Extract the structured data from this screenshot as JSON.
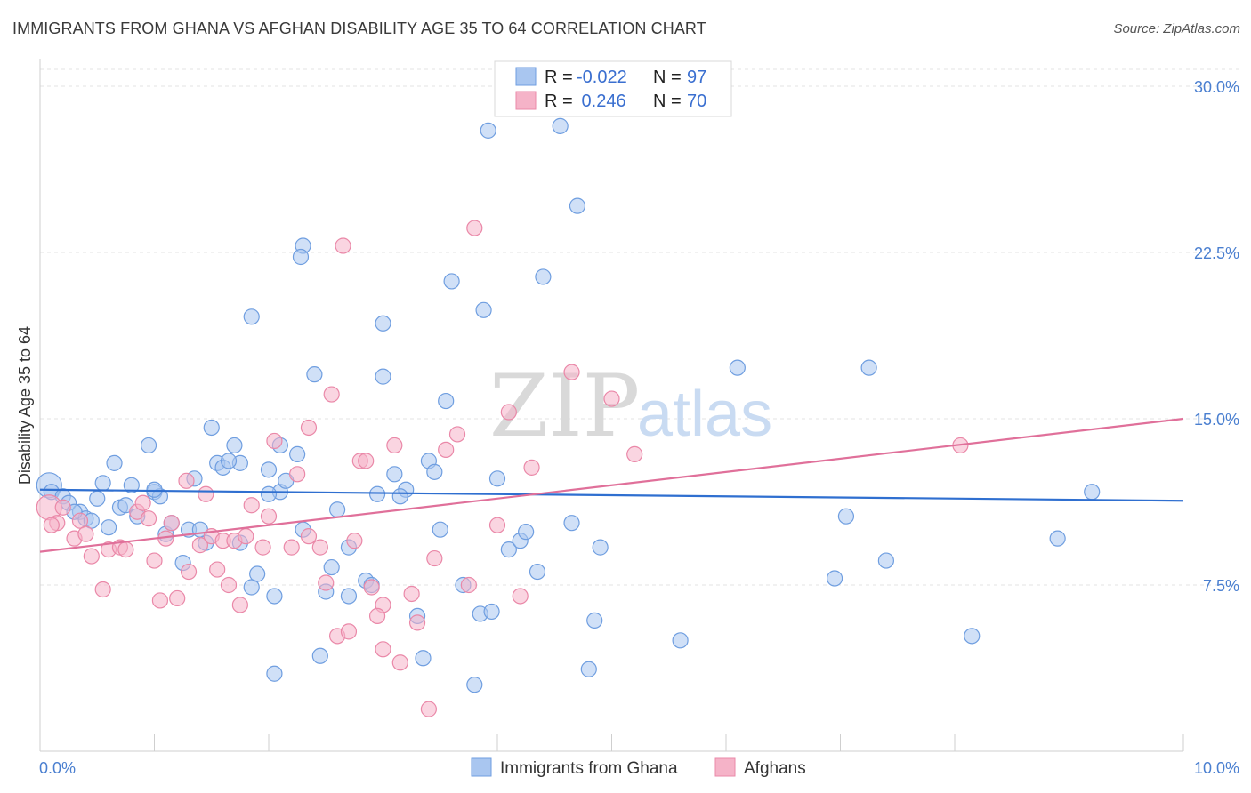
{
  "header": {
    "title": "IMMIGRANTS FROM GHANA VS AFGHAN DISABILITY AGE 35 TO 64 CORRELATION CHART",
    "source": "Source: ZipAtlas.com"
  },
  "watermark": {
    "zip": "ZIP",
    "atlas": "atlas"
  },
  "legend_top": {
    "rows": [
      {
        "r_label": "R = ",
        "r_value": "-0.022",
        "n_label": "N = ",
        "n_value": "97",
        "color": "#a9c6f0"
      },
      {
        "r_label": "R = ",
        "r_value": " 0.246",
        "n_label": "N = ",
        "n_value": "70",
        "color": "#f5b3c8"
      }
    ]
  },
  "legend_bottom": {
    "items": [
      {
        "label": "Immigrants from Ghana",
        "color": "#a9c6f0"
      },
      {
        "label": "Afghans",
        "color": "#f5b3c8"
      }
    ]
  },
  "chart_data": {
    "type": "scatter",
    "title": "IMMIGRANTS FROM GHANA VS AFGHAN DISABILITY AGE 35 TO 64 CORRELATION CHART",
    "xlabel": "",
    "ylabel": "Disability Age 35 to 64",
    "xlim": [
      0,
      10
    ],
    "ylim": [
      0,
      30
    ],
    "x_tick_labels": [
      "0.0%",
      "10.0%"
    ],
    "y_ticks": [
      7.5,
      15.0,
      22.5,
      30.0
    ],
    "y_tick_labels": [
      "7.5%",
      "15.0%",
      "22.5%",
      "30.0%"
    ],
    "grid": true,
    "colors": {
      "blue": "#6f9ee0",
      "blue_fill": "#a9c6f0",
      "blue_line": "#2f6fd0",
      "pink": "#ea88a8",
      "pink_fill": "#f5b3c8",
      "pink_line": "#e0709a",
      "axis_text": "#4a7fd0"
    },
    "series": [
      {
        "name": "Immigrants from Ghana",
        "color": "#a9c6f0",
        "trend": {
          "x": [
            0,
            10
          ],
          "y": [
            11.8,
            11.3
          ]
        },
        "points": [
          [
            0.08,
            12.0
          ],
          [
            0.1,
            11.7
          ],
          [
            0.2,
            11.5
          ],
          [
            0.25,
            11.2
          ],
          [
            0.35,
            10.8
          ],
          [
            0.4,
            10.5
          ],
          [
            0.5,
            11.4
          ],
          [
            0.55,
            12.1
          ],
          [
            0.65,
            13.0
          ],
          [
            0.7,
            11.0
          ],
          [
            0.8,
            12.0
          ],
          [
            0.85,
            10.6
          ],
          [
            0.95,
            13.8
          ],
          [
            1.0,
            11.7
          ],
          [
            1.05,
            11.5
          ],
          [
            1.1,
            9.8
          ],
          [
            1.15,
            10.3
          ],
          [
            1.25,
            8.5
          ],
          [
            1.3,
            10.0
          ],
          [
            1.35,
            12.3
          ],
          [
            1.45,
            9.4
          ],
          [
            1.5,
            14.6
          ],
          [
            1.55,
            13.0
          ],
          [
            1.6,
            12.8
          ],
          [
            1.7,
            13.8
          ],
          [
            1.75,
            13.0
          ],
          [
            1.75,
            9.4
          ],
          [
            1.85,
            7.4
          ],
          [
            1.9,
            8.0
          ],
          [
            1.85,
            19.6
          ],
          [
            2.0,
            12.7
          ],
          [
            2.1,
            11.7
          ],
          [
            2.05,
            7.0
          ],
          [
            2.05,
            3.5
          ],
          [
            2.1,
            13.8
          ],
          [
            2.15,
            12.2
          ],
          [
            2.3,
            22.8
          ],
          [
            2.28,
            22.3
          ],
          [
            2.25,
            13.4
          ],
          [
            2.3,
            10.0
          ],
          [
            2.4,
            17.0
          ],
          [
            2.45,
            4.3
          ],
          [
            2.5,
            7.2
          ],
          [
            2.55,
            8.3
          ],
          [
            2.6,
            10.9
          ],
          [
            2.7,
            9.2
          ],
          [
            2.85,
            7.7
          ],
          [
            2.9,
            7.5
          ],
          [
            2.95,
            11.6
          ],
          [
            3.0,
            19.3
          ],
          [
            3.0,
            16.9
          ],
          [
            3.1,
            12.5
          ],
          [
            3.2,
            11.8
          ],
          [
            3.3,
            6.1
          ],
          [
            3.35,
            4.2
          ],
          [
            3.4,
            13.1
          ],
          [
            3.45,
            12.6
          ],
          [
            3.5,
            10.0
          ],
          [
            3.55,
            15.8
          ],
          [
            3.6,
            21.2
          ],
          [
            3.7,
            7.5
          ],
          [
            3.8,
            3.0
          ],
          [
            3.85,
            6.2
          ],
          [
            3.88,
            19.9
          ],
          [
            3.92,
            28.0
          ],
          [
            3.95,
            6.3
          ],
          [
            4.0,
            12.3
          ],
          [
            4.1,
            9.1
          ],
          [
            4.2,
            9.5
          ],
          [
            4.25,
            9.9
          ],
          [
            4.35,
            8.1
          ],
          [
            4.4,
            21.4
          ],
          [
            4.55,
            28.2
          ],
          [
            4.65,
            10.3
          ],
          [
            4.7,
            24.6
          ],
          [
            4.8,
            3.7
          ],
          [
            4.85,
            5.9
          ],
          [
            4.9,
            9.2
          ],
          [
            5.6,
            5.0
          ],
          [
            6.1,
            17.3
          ],
          [
            6.95,
            7.8
          ],
          [
            7.05,
            10.6
          ],
          [
            7.25,
            17.3
          ],
          [
            7.4,
            8.6
          ],
          [
            8.15,
            5.2
          ],
          [
            8.9,
            9.6
          ],
          [
            9.2,
            11.7
          ],
          [
            0.3,
            10.8
          ],
          [
            0.6,
            10.1
          ],
          [
            1.0,
            11.8
          ],
          [
            1.4,
            10.0
          ],
          [
            0.45,
            10.4
          ],
          [
            0.75,
            11.1
          ],
          [
            1.65,
            13.1
          ],
          [
            2.7,
            7.0
          ],
          [
            3.15,
            11.5
          ],
          [
            2.0,
            11.6
          ]
        ]
      },
      {
        "name": "Afghans",
        "color": "#f5b3c8",
        "trend": {
          "x": [
            0,
            10
          ],
          "y": [
            9.0,
            15.0
          ]
        },
        "points": [
          [
            0.08,
            11.0
          ],
          [
            0.15,
            10.3
          ],
          [
            0.2,
            11.0
          ],
          [
            0.3,
            9.6
          ],
          [
            0.35,
            10.4
          ],
          [
            0.45,
            8.8
          ],
          [
            0.55,
            7.3
          ],
          [
            0.6,
            9.1
          ],
          [
            0.7,
            9.2
          ],
          [
            0.75,
            9.1
          ],
          [
            0.85,
            10.8
          ],
          [
            0.9,
            11.2
          ],
          [
            0.95,
            10.5
          ],
          [
            1.0,
            8.6
          ],
          [
            1.05,
            6.8
          ],
          [
            1.1,
            9.6
          ],
          [
            1.15,
            10.3
          ],
          [
            1.2,
            6.9
          ],
          [
            1.28,
            12.2
          ],
          [
            1.3,
            8.1
          ],
          [
            1.4,
            9.3
          ],
          [
            1.45,
            11.6
          ],
          [
            1.5,
            9.7
          ],
          [
            1.55,
            8.2
          ],
          [
            1.6,
            9.5
          ],
          [
            1.65,
            7.5
          ],
          [
            1.7,
            9.5
          ],
          [
            1.75,
            6.6
          ],
          [
            1.8,
            9.7
          ],
          [
            1.85,
            11.1
          ],
          [
            1.95,
            9.2
          ],
          [
            2.0,
            10.6
          ],
          [
            2.05,
            14.0
          ],
          [
            2.2,
            9.2
          ],
          [
            2.25,
            12.5
          ],
          [
            2.35,
            9.7
          ],
          [
            2.35,
            14.6
          ],
          [
            2.45,
            9.2
          ],
          [
            2.5,
            7.6
          ],
          [
            2.55,
            16.1
          ],
          [
            2.6,
            5.2
          ],
          [
            2.65,
            22.8
          ],
          [
            2.7,
            5.4
          ],
          [
            2.75,
            9.5
          ],
          [
            2.8,
            13.1
          ],
          [
            2.85,
            13.1
          ],
          [
            2.9,
            7.4
          ],
          [
            3.0,
            6.6
          ],
          [
            2.95,
            6.1
          ],
          [
            3.0,
            4.6
          ],
          [
            3.1,
            13.8
          ],
          [
            3.15,
            4.0
          ],
          [
            3.25,
            7.1
          ],
          [
            3.3,
            5.8
          ],
          [
            3.4,
            1.9
          ],
          [
            3.45,
            8.7
          ],
          [
            3.55,
            13.6
          ],
          [
            3.65,
            14.3
          ],
          [
            3.75,
            7.5
          ],
          [
            3.8,
            23.6
          ],
          [
            4.0,
            10.2
          ],
          [
            4.1,
            15.3
          ],
          [
            4.2,
            7.0
          ],
          [
            4.3,
            12.8
          ],
          [
            4.65,
            17.1
          ],
          [
            5.0,
            15.9
          ],
          [
            5.2,
            13.4
          ],
          [
            8.05,
            13.8
          ],
          [
            0.1,
            10.2
          ],
          [
            0.4,
            9.8
          ]
        ]
      }
    ]
  }
}
